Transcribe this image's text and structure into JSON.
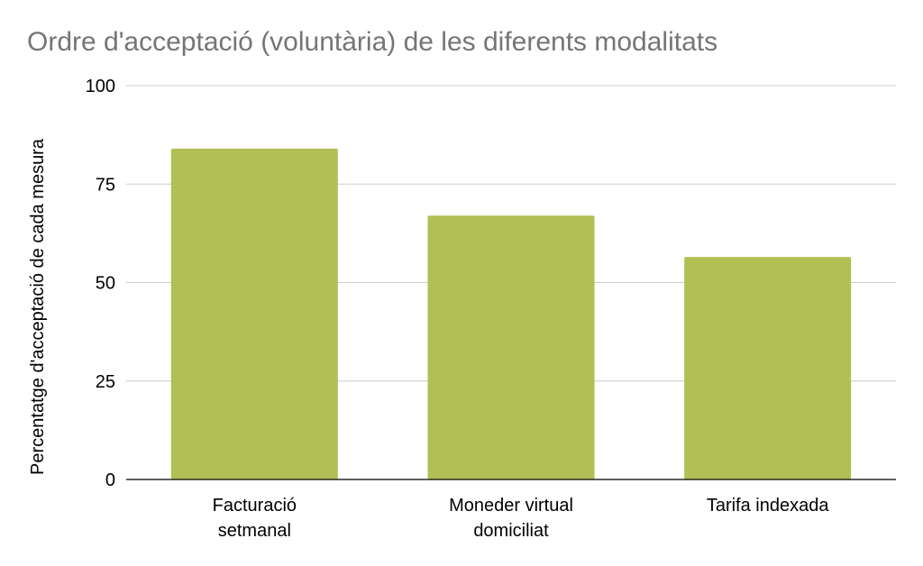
{
  "chart_data": {
    "type": "bar",
    "title": "Ordre d'acceptació (voluntària) de les diferents modalitats",
    "xlabel": "",
    "ylabel": "Percentatge d'acceptació de cada mesura",
    "categories": [
      [
        "Facturació",
        "setmanal"
      ],
      [
        "Moneder virtual",
        "domiciliat"
      ],
      [
        "Tarifa indexada"
      ]
    ],
    "values": [
      84,
      67,
      56.5
    ],
    "ylim": [
      0,
      100
    ],
    "yticks": [
      0,
      25,
      50,
      75,
      100
    ],
    "grid": true,
    "bar_color": "#b2bf55"
  }
}
